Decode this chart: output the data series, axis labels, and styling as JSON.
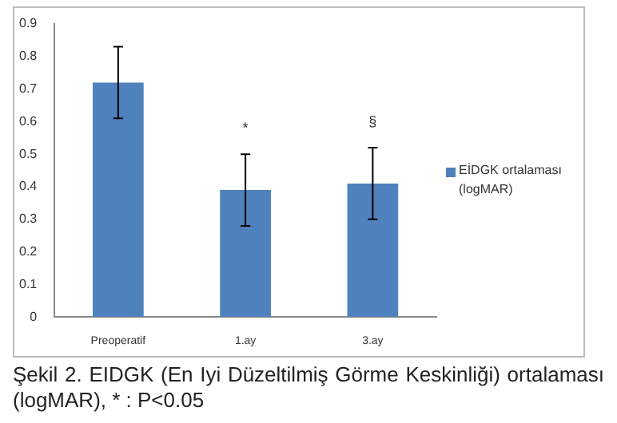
{
  "chart_data": {
    "type": "bar",
    "categories": [
      "Preoperatif",
      "1.ay",
      "3.ay"
    ],
    "series": [
      {
        "name": "EİDGK ortalaması (logMAR)",
        "color": "#4f81bd",
        "values": [
          0.72,
          0.39,
          0.41
        ],
        "errors": [
          0.11,
          0.11,
          0.11
        ]
      }
    ],
    "ylim": [
      0,
      0.9
    ],
    "yticks": [
      {
        "value": 0,
        "label": "0"
      },
      0.1,
      0.2,
      0.3,
      0.4,
      0.5,
      0.6,
      0.7,
      0.8,
      0.9
    ],
    "grid": false,
    "legend": "right",
    "annotations": [
      {
        "text": "*",
        "x": "1.ay",
        "y": 0.5
      },
      {
        "text": "§",
        "x": "3.ay",
        "y": 0.52
      },
      "Şekil 2. EIDGK (En Iyi Düzeltilmiş Görme Keskinliği) ortalaması (logMAR), * : P<0.05"
    ]
  }
}
